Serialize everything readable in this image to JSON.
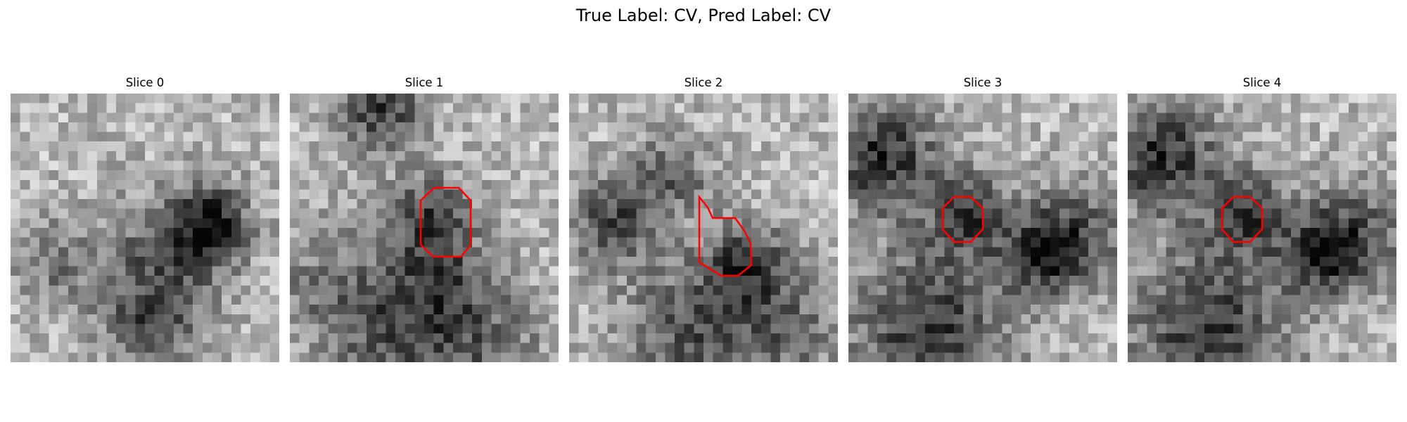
{
  "suptitle": "True Label: CV, Pred Label: CV",
  "contour_color": "#ff0000",
  "slices": [
    {
      "title": "Slice 0",
      "seed": 11,
      "has_contour": false
    },
    {
      "title": "Slice 1",
      "seed": 23,
      "has_contour": true
    },
    {
      "title": "Slice 2",
      "seed": 37,
      "has_contour": true
    },
    {
      "title": "Slice 3",
      "seed": 51,
      "has_contour": true
    },
    {
      "title": "Slice 4",
      "seed": 51,
      "has_contour": true
    }
  ]
}
